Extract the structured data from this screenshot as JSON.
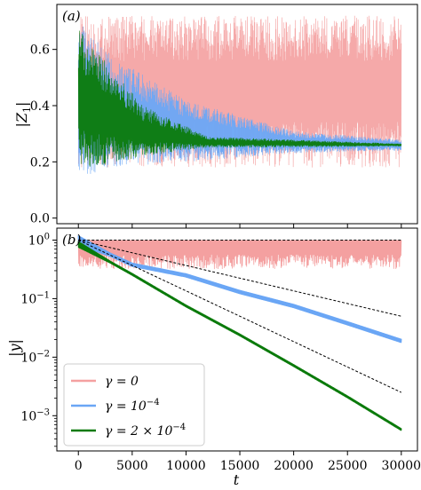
{
  "chart_data": [
    {
      "type": "line",
      "panel_label": "(a)",
      "xlabel": "",
      "ylabel": "|Z_1|",
      "ylim": [
        -0.02,
        0.76
      ],
      "xlim": [
        -2000,
        31500
      ],
      "yticks": [
        0.0,
        0.2,
        0.4,
        0.6
      ],
      "ytick_labels": [
        "0.0",
        "0.2",
        "0.4",
        "0.6"
      ],
      "series": [
        {
          "name": "γ = 0",
          "color": "#f4a0a0",
          "type": "oscillation",
          "center": [
            [
              0,
              0.45
            ],
            [
              30000,
              0.45
            ]
          ],
          "half_range": [
            [
              0,
              0.27
            ],
            [
              30000,
              0.27
            ]
          ]
        },
        {
          "name": "γ = 10^-4",
          "color": "#6aa6f5",
          "type": "oscillation",
          "center": [
            [
              0,
              0.42
            ],
            [
              3000,
              0.38
            ],
            [
              10000,
              0.31
            ],
            [
              20000,
              0.27
            ],
            [
              30000,
              0.26
            ]
          ],
          "half_range": [
            [
              0,
              0.28
            ],
            [
              3000,
              0.2
            ],
            [
              10000,
              0.11
            ],
            [
              20000,
              0.04
            ],
            [
              30000,
              0.02
            ]
          ]
        },
        {
          "name": "γ = 2 × 10^-4",
          "color": "#0a7a0a",
          "type": "oscillation",
          "center": [
            [
              0,
              0.43
            ],
            [
              2000,
              0.38
            ],
            [
              6000,
              0.31
            ],
            [
              12000,
              0.27
            ],
            [
              30000,
              0.26
            ]
          ],
          "half_range": [
            [
              0,
              0.25
            ],
            [
              2000,
              0.2
            ],
            [
              6000,
              0.09
            ],
            [
              12000,
              0.02
            ],
            [
              30000,
              0.005
            ]
          ]
        }
      ]
    },
    {
      "type": "line",
      "panel_label": "(b)",
      "xlabel": "t",
      "ylabel": "|y|",
      "yscale": "log",
      "ylim": [
        0.00025,
        1.6
      ],
      "xlim": [
        -2000,
        31500
      ],
      "xticks": [
        0,
        5000,
        10000,
        15000,
        20000,
        25000,
        30000
      ],
      "xtick_labels": [
        "0",
        "5000",
        "10000",
        "15000",
        "20000",
        "25000",
        "30000"
      ],
      "yticks": [
        1,
        0.1,
        0.01,
        0.001
      ],
      "ytick_labels": [
        "10^0",
        "10^-1",
        "10^-2",
        "10^-3"
      ],
      "series": [
        {
          "name": "γ = 0",
          "color": "#f4a0a0",
          "type": "band",
          "lower": 0.32,
          "upper": 1.0
        },
        {
          "name": "γ = 10^-4",
          "color": "#6aa6f5",
          "type": "decay",
          "points": [
            [
              0,
              1.0
            ],
            [
              5000,
              0.38
            ],
            [
              10000,
              0.25
            ],
            [
              15000,
              0.13
            ],
            [
              20000,
              0.075
            ],
            [
              25000,
              0.038
            ],
            [
              30000,
              0.019
            ]
          ]
        },
        {
          "name": "γ = 2 × 10^-4",
          "color": "#0a7a0a",
          "type": "decay",
          "points": [
            [
              0,
              0.85
            ],
            [
              5000,
              0.26
            ],
            [
              10000,
              0.075
            ],
            [
              15000,
              0.024
            ],
            [
              20000,
              0.0072
            ],
            [
              25000,
              0.0021
            ],
            [
              30000,
              0.00058
            ]
          ]
        },
        {
          "name": "",
          "color": "#000000",
          "type": "reference-dashed",
          "points": [
            [
              0,
              1.0
            ],
            [
              30000,
              1.0
            ]
          ]
        },
        {
          "name": "",
          "color": "#000000",
          "type": "reference-dashed",
          "points": [
            [
              0,
              1.0
            ],
            [
              30000,
              0.05
            ]
          ]
        },
        {
          "name": "",
          "color": "#000000",
          "type": "reference-dashed",
          "points": [
            [
              0,
              1.0
            ],
            [
              30000,
              0.0025
            ]
          ]
        }
      ],
      "legend": {
        "placement": "lower-left",
        "entries": [
          {
            "color": "#f4a0a0",
            "base": "γ = 0",
            "sup": "",
            "tail": ""
          },
          {
            "color": "#6aa6f5",
            "base": "γ = 10",
            "sup": "−4",
            "tail": ""
          },
          {
            "color": "#0a7a0a",
            "base": "γ = 2 × 10",
            "sup": "−4",
            "tail": ""
          }
        ]
      }
    }
  ]
}
